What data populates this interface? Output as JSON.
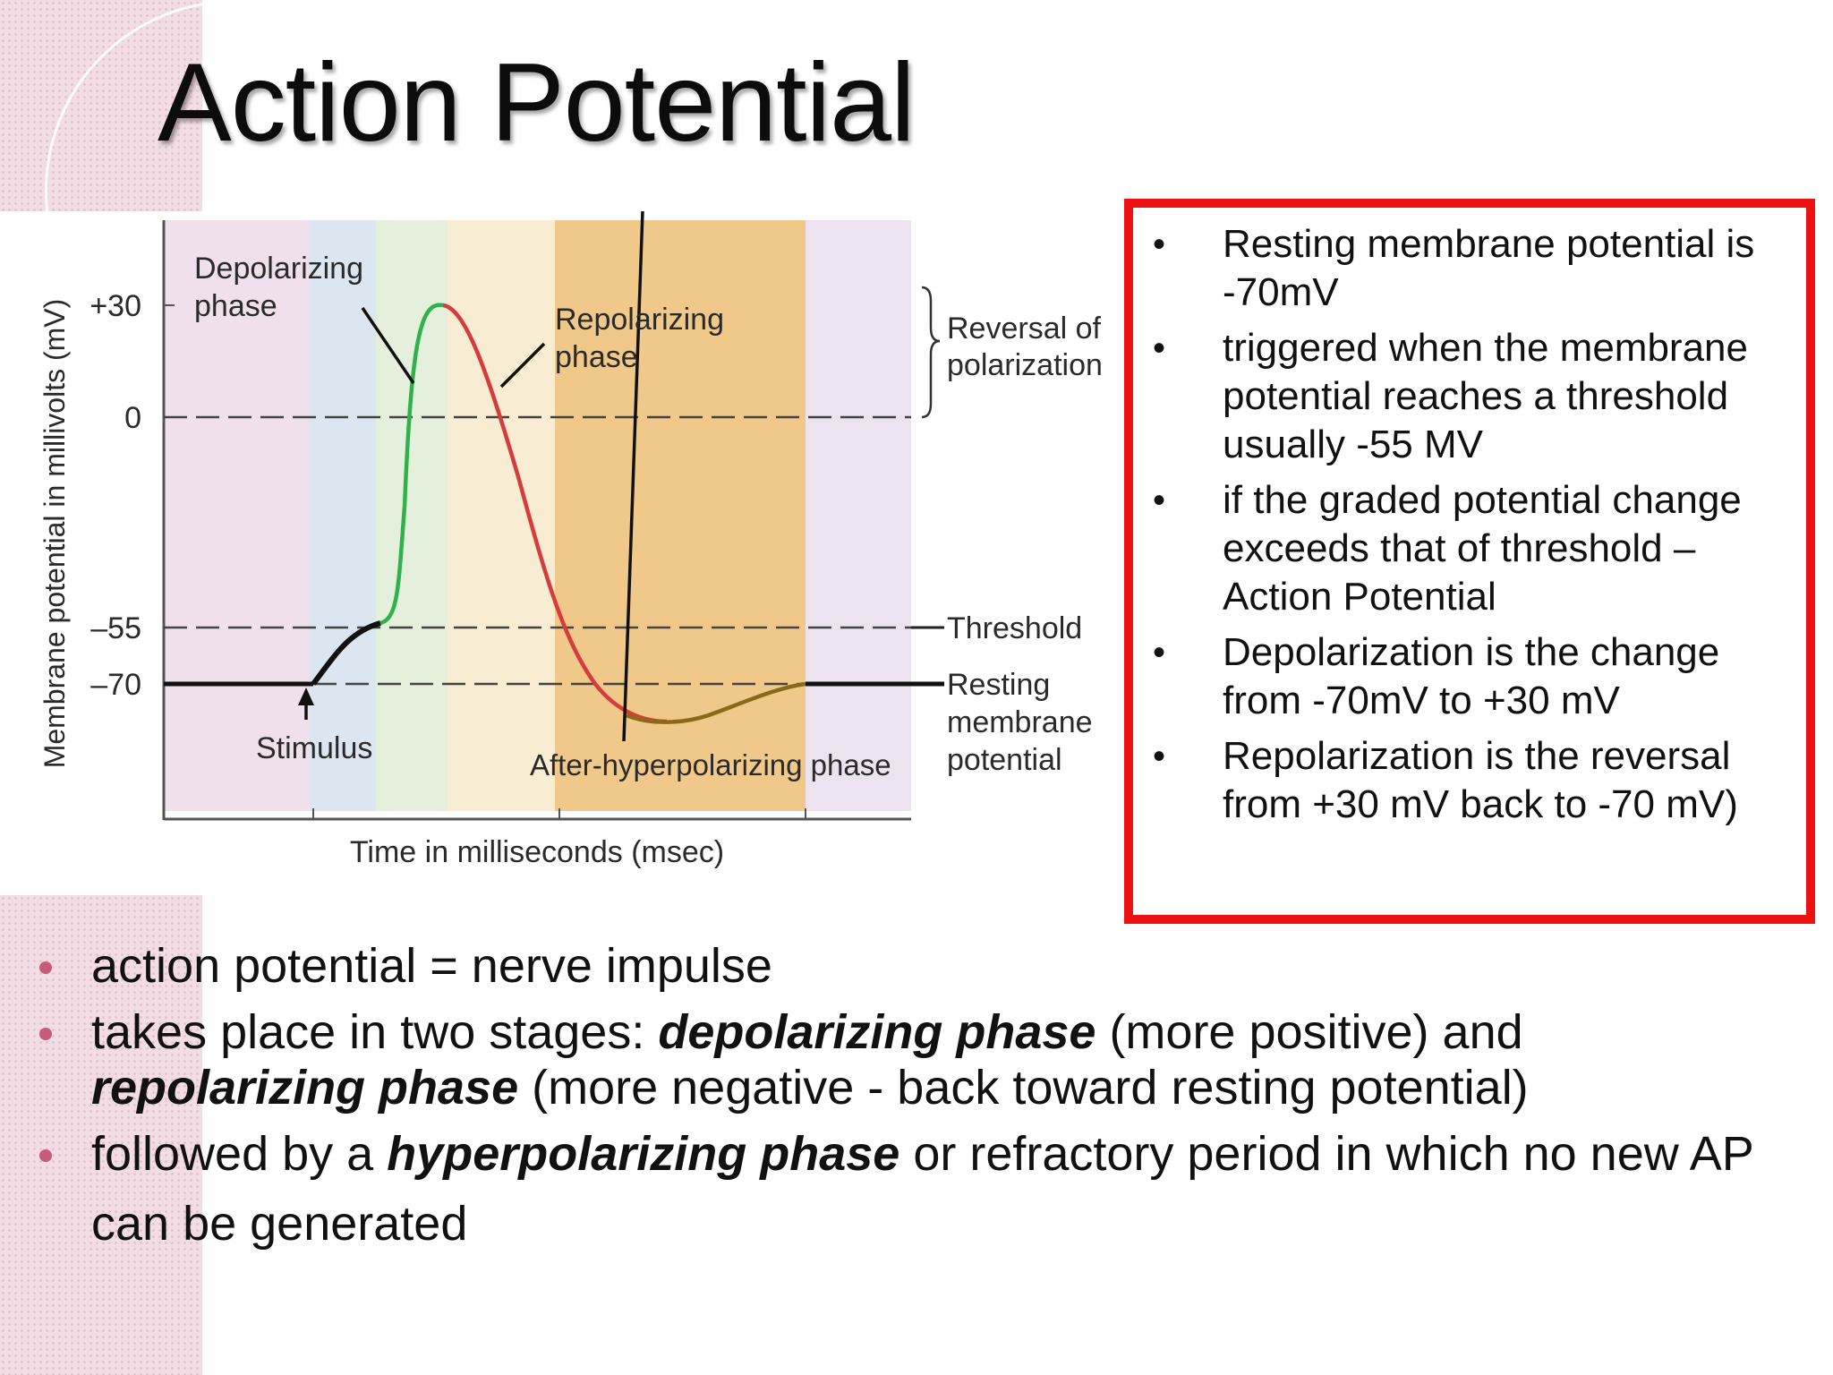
{
  "slide": {
    "title": "Action Potential"
  },
  "diagram": {
    "y_axis_label": "Membrane potential in millivolts (mV)",
    "x_axis_label": "Time in milliseconds (msec)",
    "y_ticks": [
      "+30",
      "0",
      "–55",
      "–70"
    ],
    "phase_labels": {
      "depolarizing": [
        "Depolarizing",
        "phase"
      ],
      "repolarizing": [
        "Repolarizing",
        "phase"
      ],
      "after_hyperpolarizing": "After-hyperpolarizing phase"
    },
    "reversal": [
      "Reversal of",
      "polarization"
    ],
    "threshold": "Threshold",
    "resting": [
      "Resting",
      "membrane",
      "potential"
    ],
    "stimulus": "Stimulus",
    "colors": {
      "depolarizing_curve": "#2fb24a",
      "repolarizing_curve": "#d63c3c",
      "hyperpolarizing_curve": "#8a6a1a",
      "resting_line": "#111111",
      "band_1": "#efe0ec",
      "band_2": "#dbe6f0",
      "band_3": "#e4f0dc",
      "band_4": "#f8ecd2",
      "band_5": "#f0c98a",
      "band_6": "#ede2f0"
    }
  },
  "red_box": {
    "bullet": "•",
    "items": [
      "Resting membrane potential is -70mV",
      "triggered when the membrane potential reaches a threshold usually -55 MV",
      "if the graded potential change exceeds that of threshold – Action Potential",
      "Depolarization is the change from -70mV to +30 mV",
      "Repolarization is the reversal from +30 mV back to  -70 mV)"
    ]
  },
  "bullets": {
    "item1": "action potential = nerve impulse",
    "item2": {
      "a": "takes place in two stages: ",
      "b": "depolarizing phase",
      "c": " (more positive) and ",
      "d": "repolarizing phase",
      "e": " (more negative - back toward resting potential)"
    },
    "item3": {
      "a": "followed by a ",
      "b": "hyperpolarizing phase",
      "c": " or refractory period in which no new AP"
    },
    "item4": "can be generated"
  }
}
